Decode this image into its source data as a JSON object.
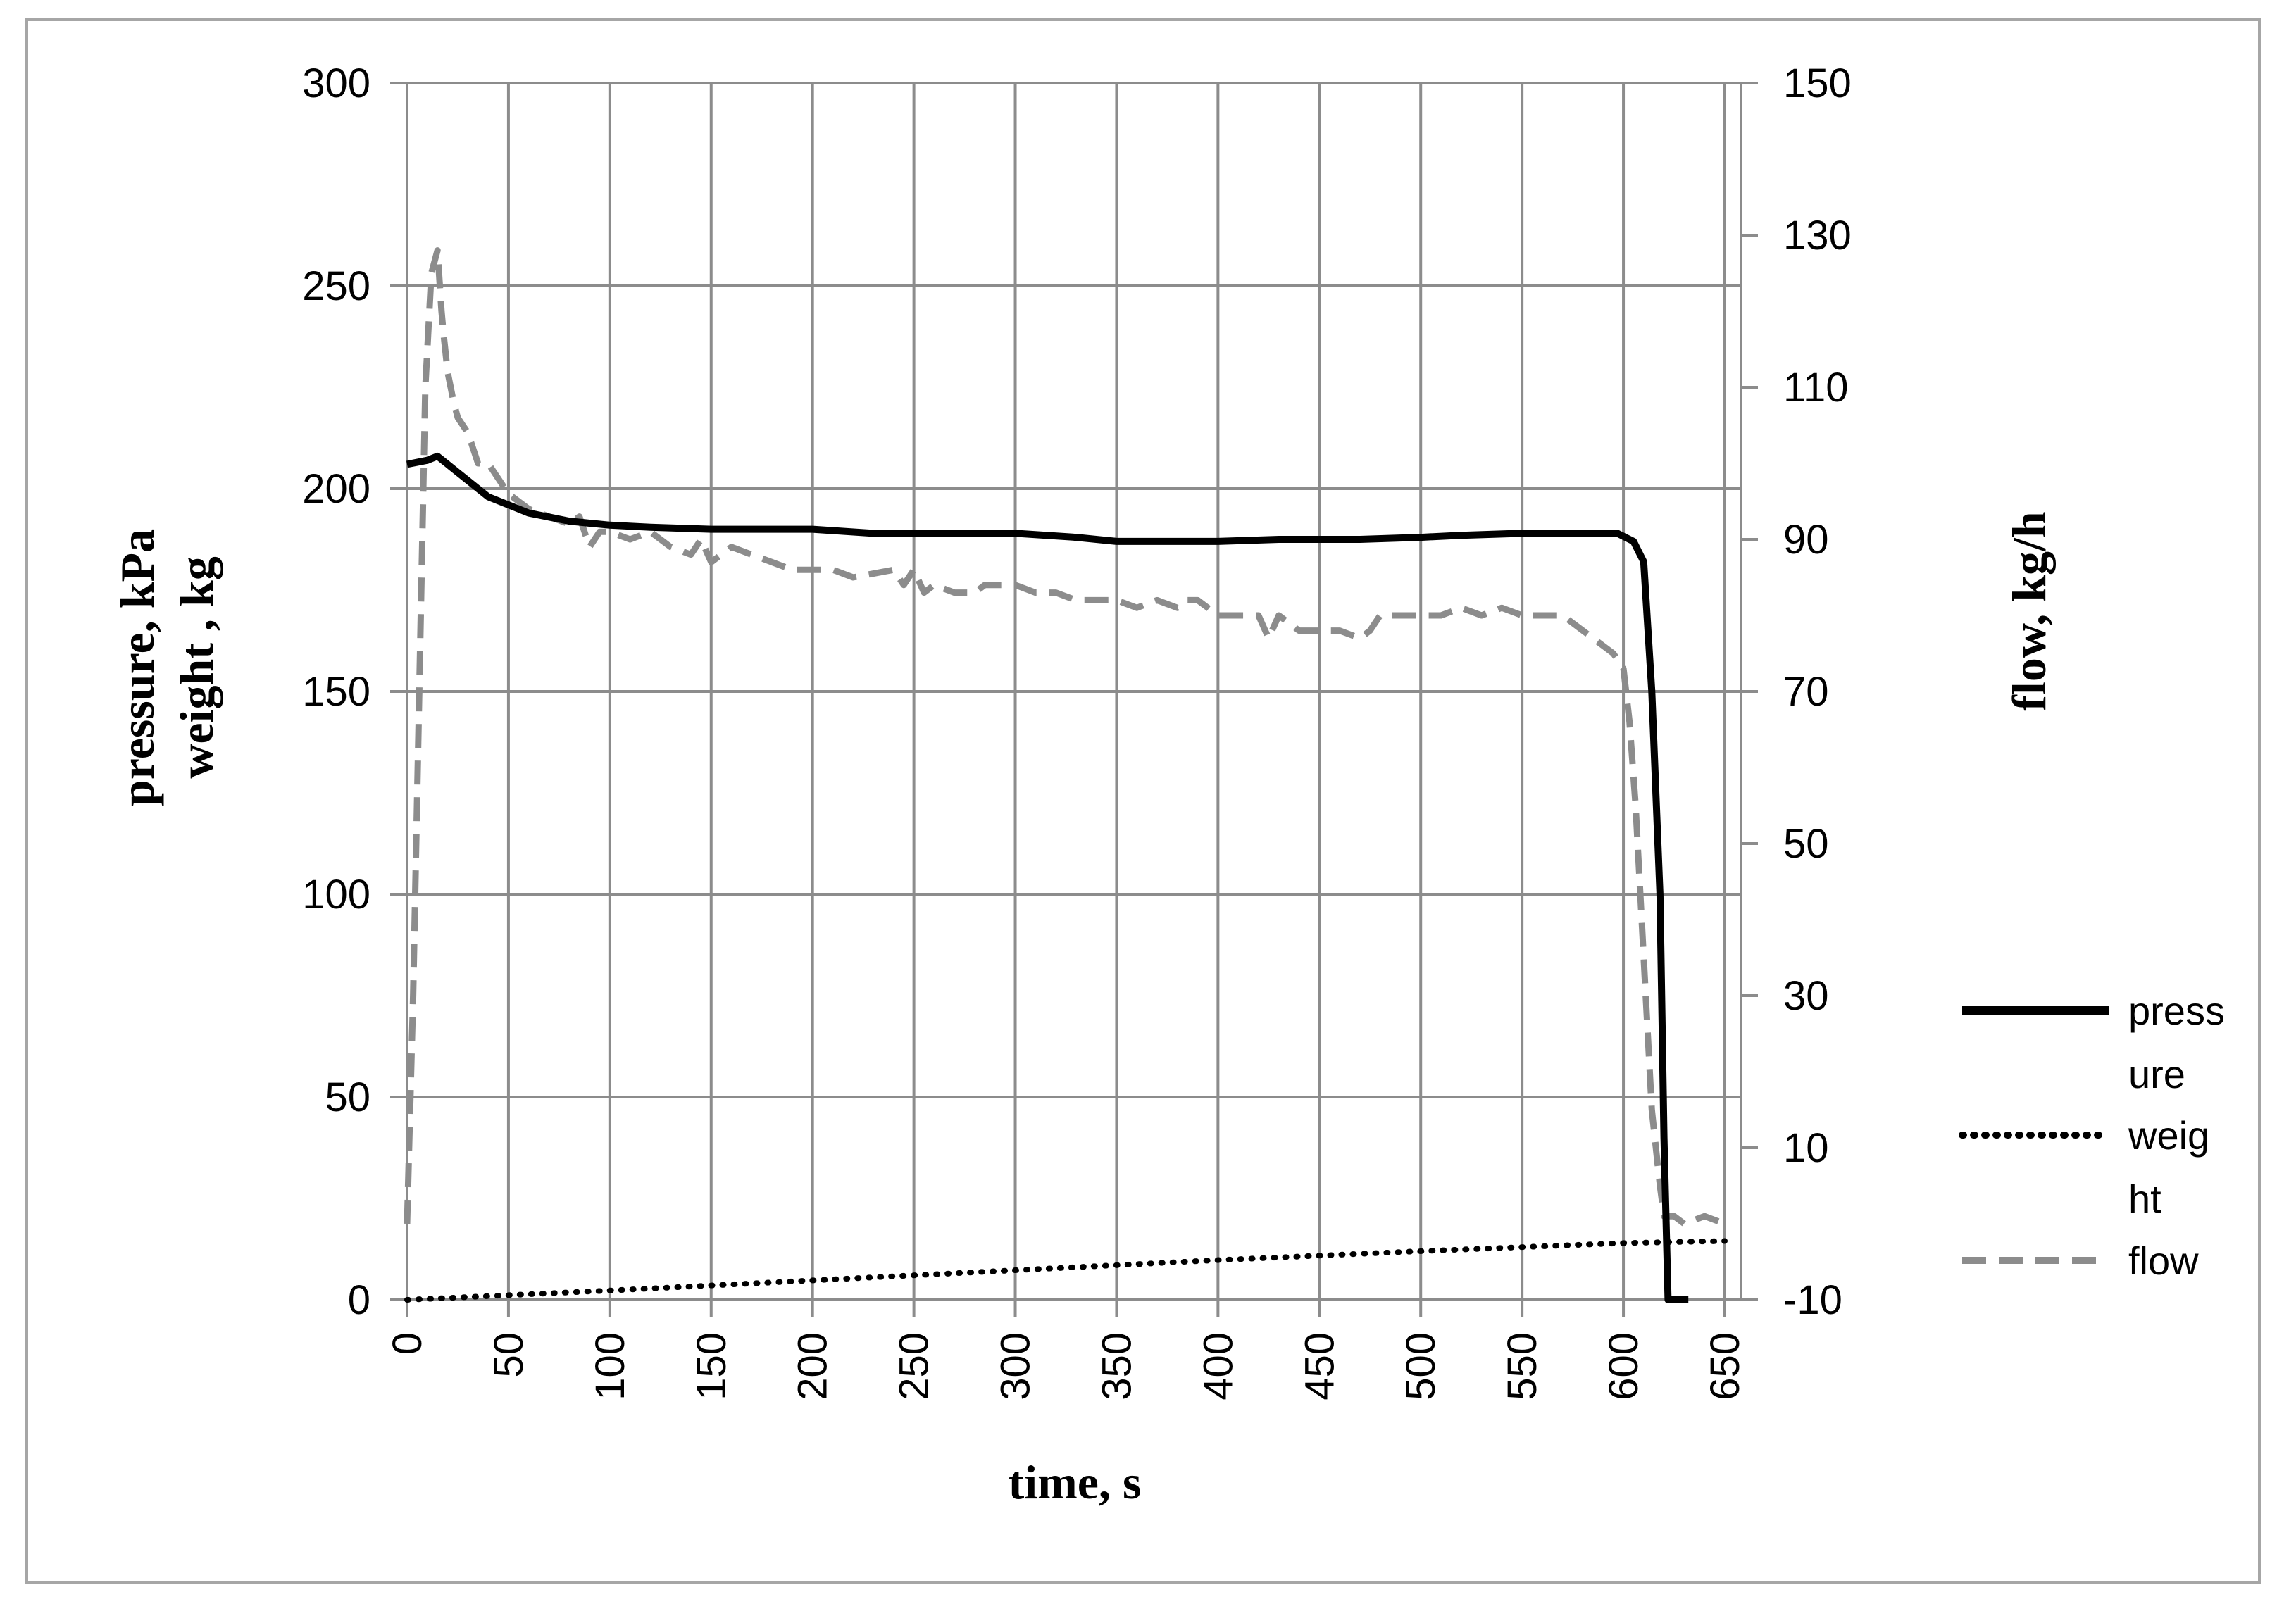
{
  "chart_data": {
    "type": "line",
    "xlabel": "time, s",
    "ylabel_left_lines": [
      "pressure, kPa",
      "weight , kg"
    ],
    "ylabel_right": "flow, kg/h",
    "xlim": [
      0,
      650
    ],
    "ylim_left": [
      0,
      300
    ],
    "ylim_right": [
      -10,
      150
    ],
    "x_ticks": [
      "0",
      "50",
      "100",
      "150",
      "200",
      "250",
      "300",
      "350",
      "400",
      "450",
      "500",
      "550",
      "600",
      "650"
    ],
    "y_left_ticks": [
      "0",
      "50",
      "100",
      "150",
      "200",
      "250",
      "300"
    ],
    "y_right_ticks": [
      "-10",
      "10",
      "30",
      "50",
      "70",
      "90",
      "110",
      "130",
      "150"
    ],
    "grid": true,
    "legend": {
      "placement": "right",
      "entries": [
        {
          "lines": [
            "press",
            "ure"
          ],
          "series": "pressure"
        },
        {
          "lines": [
            "weig",
            "ht"
          ],
          "series": "weight"
        },
        {
          "lines": [
            "flow"
          ],
          "series": "flow"
        }
      ]
    },
    "series": [
      {
        "name": "pressure",
        "axis": "left",
        "color": "#000000",
        "style": "solid",
        "x": [
          0,
          10,
          15,
          20,
          25,
          30,
          35,
          40,
          50,
          60,
          70,
          80,
          90,
          100,
          120,
          150,
          200,
          230,
          250,
          300,
          330,
          350,
          370,
          400,
          430,
          470,
          500,
          520,
          550,
          590,
          597,
          605,
          610,
          614,
          618,
          620,
          622,
          625,
          632
        ],
        "values": [
          206,
          207,
          208,
          206,
          204,
          202,
          200,
          198,
          196,
          194,
          193,
          192,
          191.5,
          191,
          190.5,
          190,
          190,
          189,
          189,
          189,
          188,
          187,
          187,
          187,
          187.5,
          187.5,
          188,
          188.5,
          189,
          189,
          189,
          187,
          182,
          150,
          100,
          40,
          0,
          0,
          0
        ]
      },
      {
        "name": "weight",
        "axis": "left",
        "color": "#000000",
        "style": "dotted",
        "x": [
          0,
          100,
          200,
          300,
          400,
          500,
          600,
          650
        ],
        "values": [
          0,
          2.3,
          4.8,
          7.3,
          9.8,
          12,
          14,
          14.5
        ]
      },
      {
        "name": "flow",
        "axis": "right",
        "color": "#8c8c8c",
        "style": "dashed",
        "x": [
          0,
          3,
          6,
          9,
          12,
          15,
          17,
          18,
          20,
          23,
          25,
          30,
          35,
          40,
          45,
          50,
          60,
          70,
          80,
          85,
          90,
          95,
          100,
          110,
          120,
          130,
          140,
          145,
          150,
          160,
          170,
          180,
          190,
          200,
          210,
          220,
          240,
          245,
          250,
          255,
          260,
          270,
          280,
          285,
          290,
          300,
          310,
          320,
          330,
          340,
          350,
          360,
          370,
          380,
          385,
          390,
          400,
          410,
          420,
          425,
          430,
          440,
          450,
          460,
          470,
          475,
          480,
          490,
          500,
          505,
          510,
          520,
          530,
          540,
          550,
          560,
          570,
          580,
          590,
          595,
          600,
          603,
          606,
          610,
          614,
          618,
          620,
          625,
          630,
          640,
          650
        ],
        "values": [
          0,
          30,
          70,
          110,
          125,
          128,
          120,
          117,
          112,
          108,
          106,
          104,
          100,
          100,
          98,
          96,
          94,
          93,
          92,
          93,
          89,
          91,
          91,
          90,
          91,
          89,
          88,
          90,
          87,
          89,
          88,
          87,
          86,
          86,
          86,
          85,
          86,
          84,
          86,
          83,
          84,
          83,
          83,
          84,
          84,
          84,
          83,
          83,
          82,
          82,
          82,
          81,
          82,
          81,
          82,
          82,
          80,
          80,
          80,
          77,
          80,
          78,
          78,
          78,
          77,
          78,
          80,
          80,
          80,
          80,
          80,
          81,
          80,
          81,
          80,
          80,
          80,
          78,
          76,
          75,
          73,
          66,
          55,
          35,
          15,
          5,
          1,
          1,
          0,
          1,
          0
        ]
      }
    ]
  }
}
